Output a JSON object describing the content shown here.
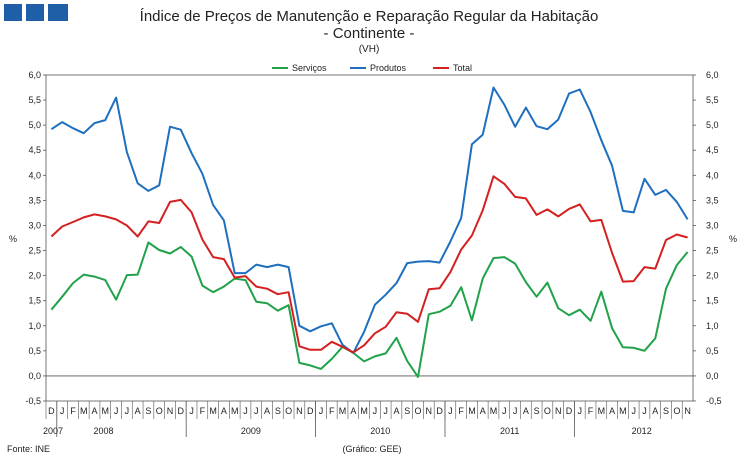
{
  "chart_data": {
    "type": "line",
    "title": "Índice de Preços de Manutenção e Reparação Regular da Habitação",
    "subtitle": "- Continente -",
    "unit_note": "(VH)",
    "ylabel_left": "%",
    "ylabel_right": "%",
    "ylim": [
      -0.5,
      6.0
    ],
    "y_ticks": [
      "6,0",
      "5,5",
      "5,0",
      "4,5",
      "4,0",
      "3,5",
      "3,0",
      "2,5",
      "2,0",
      "1,5",
      "1,0",
      "0,5",
      "0,0",
      "-0,5"
    ],
    "month_labels": [
      "D",
      "J",
      "F",
      "M",
      "A",
      "M",
      "J",
      "J",
      "A",
      "S",
      "O",
      "N",
      "D",
      "J",
      "F",
      "M",
      "A",
      "M",
      "J",
      "J",
      "A",
      "S",
      "O",
      "N",
      "D",
      "J",
      "F",
      "M",
      "A",
      "M",
      "J",
      "J",
      "A",
      "S",
      "O",
      "N",
      "D",
      "J",
      "F",
      "M",
      "A",
      "M",
      "J",
      "J",
      "A",
      "S",
      "O",
      "N",
      "D",
      "J",
      "F",
      "M",
      "A",
      "M",
      "J",
      "J",
      "A",
      "S",
      "O",
      "N"
    ],
    "year_labels": [
      "2007",
      "2008",
      "2009",
      "2010",
      "2011",
      "2012"
    ],
    "series": [
      {
        "name": "Serviços",
        "color": "#21a24a",
        "values": [
          1.32,
          1.58,
          1.85,
          2.02,
          1.98,
          1.91,
          1.52,
          2.01,
          2.02,
          2.66,
          2.51,
          2.44,
          2.57,
          2.38,
          1.8,
          1.67,
          1.78,
          1.94,
          1.91,
          1.48,
          1.45,
          1.3,
          1.41,
          0.26,
          0.21,
          0.14,
          0.34,
          0.58,
          0.46,
          0.29,
          0.39,
          0.45,
          0.76,
          0.3,
          -0.02,
          1.23,
          1.28,
          1.4,
          1.77,
          1.11,
          1.94,
          2.35,
          2.37,
          2.24,
          1.87,
          1.58,
          1.86,
          1.35,
          1.21,
          1.32,
          1.1,
          1.68,
          0.95,
          0.57,
          0.56,
          0.5,
          0.75,
          1.74,
          2.21,
          2.47
        ]
      },
      {
        "name": "Produtos",
        "color": "#1f6fbf",
        "values": [
          4.92,
          5.06,
          4.94,
          4.84,
          5.04,
          5.1,
          5.55,
          4.46,
          3.84,
          3.69,
          3.8,
          4.97,
          4.91,
          4.44,
          4.03,
          3.41,
          3.1,
          2.05,
          2.05,
          2.22,
          2.17,
          2.22,
          2.17,
          1.0,
          0.89,
          0.99,
          1.05,
          0.62,
          0.46,
          0.88,
          1.42,
          1.62,
          1.85,
          2.25,
          2.28,
          2.29,
          2.26,
          2.68,
          3.15,
          4.62,
          4.81,
          5.75,
          5.41,
          4.97,
          5.35,
          4.98,
          4.92,
          5.11,
          5.63,
          5.71,
          5.26,
          4.7,
          4.19,
          3.29,
          3.26,
          3.93,
          3.61,
          3.71,
          3.47,
          3.12
        ]
      },
      {
        "name": "Total",
        "color": "#d42020",
        "values": [
          2.78,
          2.98,
          3.07,
          3.16,
          3.22,
          3.18,
          3.12,
          3.0,
          2.78,
          3.08,
          3.05,
          3.47,
          3.51,
          3.26,
          2.72,
          2.37,
          2.33,
          1.96,
          1.99,
          1.78,
          1.74,
          1.63,
          1.67,
          0.59,
          0.52,
          0.52,
          0.68,
          0.58,
          0.47,
          0.61,
          0.85,
          0.98,
          1.27,
          1.24,
          1.08,
          1.73,
          1.75,
          2.07,
          2.52,
          2.8,
          3.3,
          3.98,
          3.83,
          3.57,
          3.54,
          3.21,
          3.32,
          3.18,
          3.33,
          3.42,
          3.08,
          3.11,
          2.45,
          1.88,
          1.89,
          2.17,
          2.14,
          2.71,
          2.82,
          2.76
        ]
      }
    ],
    "legend_position": "top-center",
    "source": "Fonte: INE",
    "credit": "(Gráfico: GEE)"
  }
}
